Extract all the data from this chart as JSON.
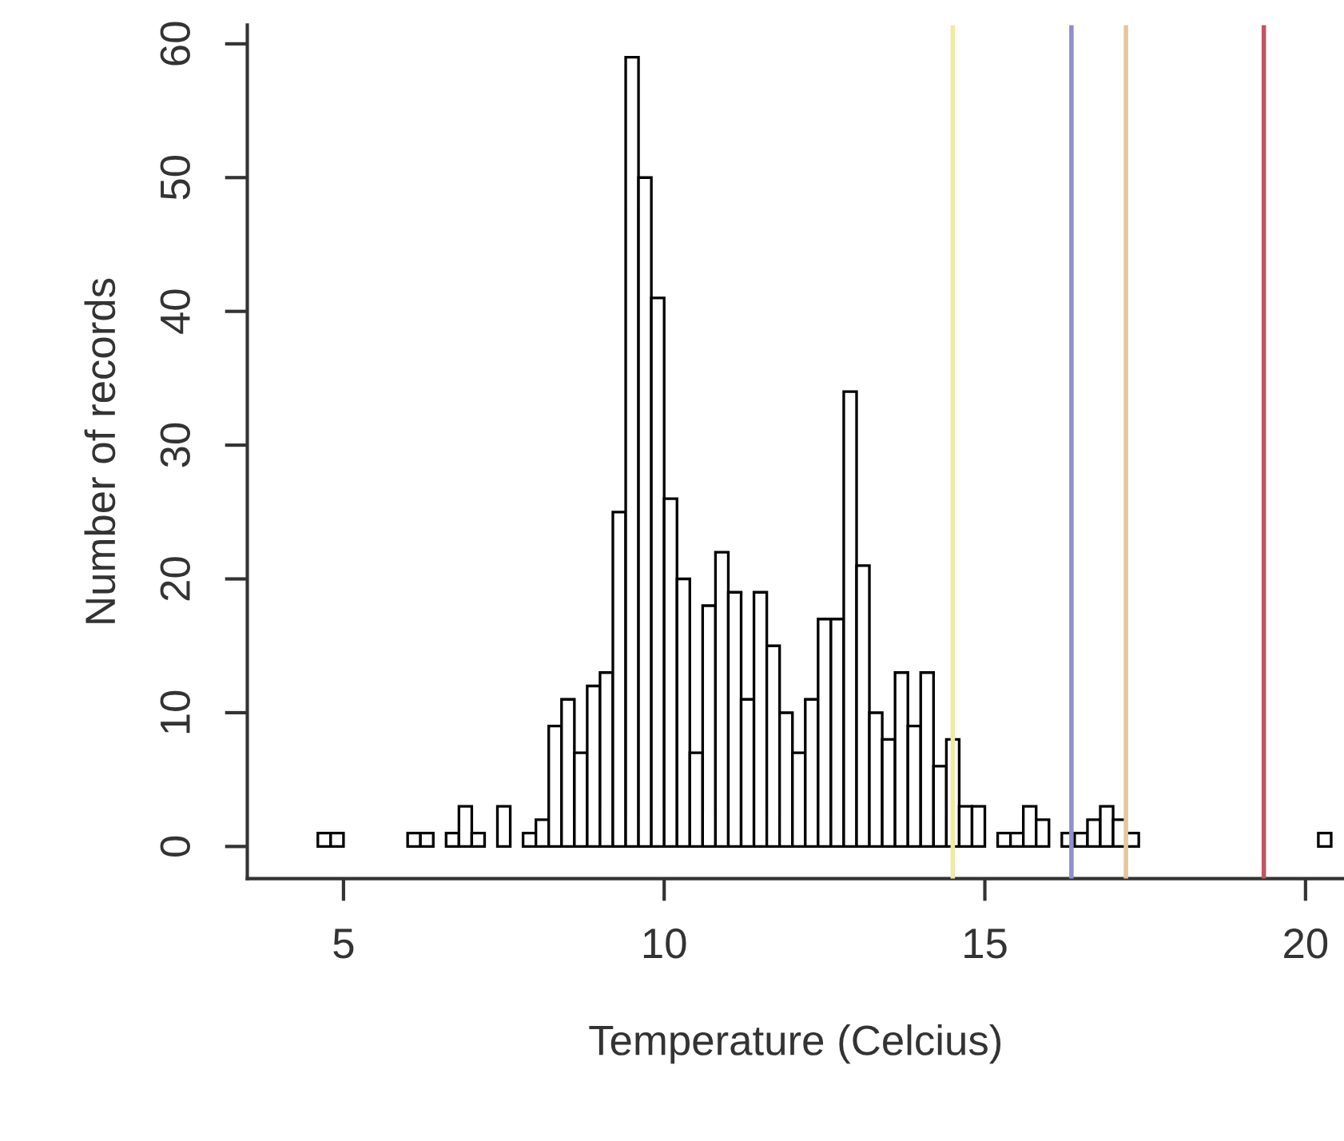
{
  "chart_data": {
    "type": "histogram",
    "xlabel": "Temperature (Celcius)",
    "ylabel": "Number of records",
    "bins": [
      4.6,
      4.8,
      5.0,
      5.2,
      5.4,
      5.6,
      5.8,
      6.0,
      6.2,
      6.4,
      6.6,
      6.8,
      7.0,
      7.2,
      7.4,
      7.6,
      7.8,
      8.0,
      8.2,
      8.4,
      8.6,
      8.8,
      9.0,
      9.2,
      9.4,
      9.6,
      9.8,
      10.0,
      10.2,
      10.4,
      10.6,
      10.8,
      11.0,
      11.2,
      11.4,
      11.6,
      11.8,
      12.0,
      12.2,
      12.4,
      12.6,
      12.8,
      13.0,
      13.2,
      13.4,
      13.6,
      13.8,
      14.0,
      14.2,
      14.4,
      14.6,
      14.8,
      15.0,
      15.2,
      15.4,
      15.6,
      15.8,
      16.0,
      16.2,
      16.4,
      16.6,
      16.8,
      17.0,
      17.2,
      17.4,
      17.6,
      17.8,
      18.0,
      18.2,
      18.4,
      18.6,
      18.8,
      19.0,
      19.2,
      19.4,
      19.6,
      19.8,
      20.0,
      20.2,
      20.4
    ],
    "values": [
      1,
      1,
      0,
      0,
      0,
      0,
      0,
      1,
      1,
      0,
      1,
      3,
      1,
      0,
      3,
      0,
      1,
      2,
      9,
      11,
      7,
      12,
      13,
      25,
      59,
      50,
      41,
      26,
      20,
      7,
      18,
      22,
      19,
      11,
      19,
      15,
      10,
      7,
      11,
      17,
      17,
      34,
      21,
      10,
      8,
      13,
      9,
      13,
      6,
      8,
      3,
      3,
      0,
      1,
      1,
      3,
      2,
      0,
      1,
      1,
      2,
      3,
      2,
      1,
      0,
      0,
      0,
      0,
      0,
      0,
      0,
      0,
      0,
      0,
      0,
      0,
      0,
      0,
      1
    ],
    "color": "#ffffff",
    "xlim": [
      3.5,
      20.6
    ],
    "ylim": [
      -2.4,
      61.4
    ],
    "xticks": [
      5,
      10,
      15,
      20
    ],
    "yticks": [
      0,
      10,
      20,
      30,
      40,
      50,
      60
    ],
    "ref_lines": [
      {
        "axis": "x",
        "value": 14.5,
        "color": "#f3e9a0"
      },
      {
        "axis": "x",
        "value": 16.35,
        "color": "#8f8fcc"
      },
      {
        "axis": "x",
        "value": 17.2,
        "color": "#e3c89a"
      },
      {
        "axis": "x",
        "value": 19.35,
        "color": "#c05566"
      }
    ]
  }
}
